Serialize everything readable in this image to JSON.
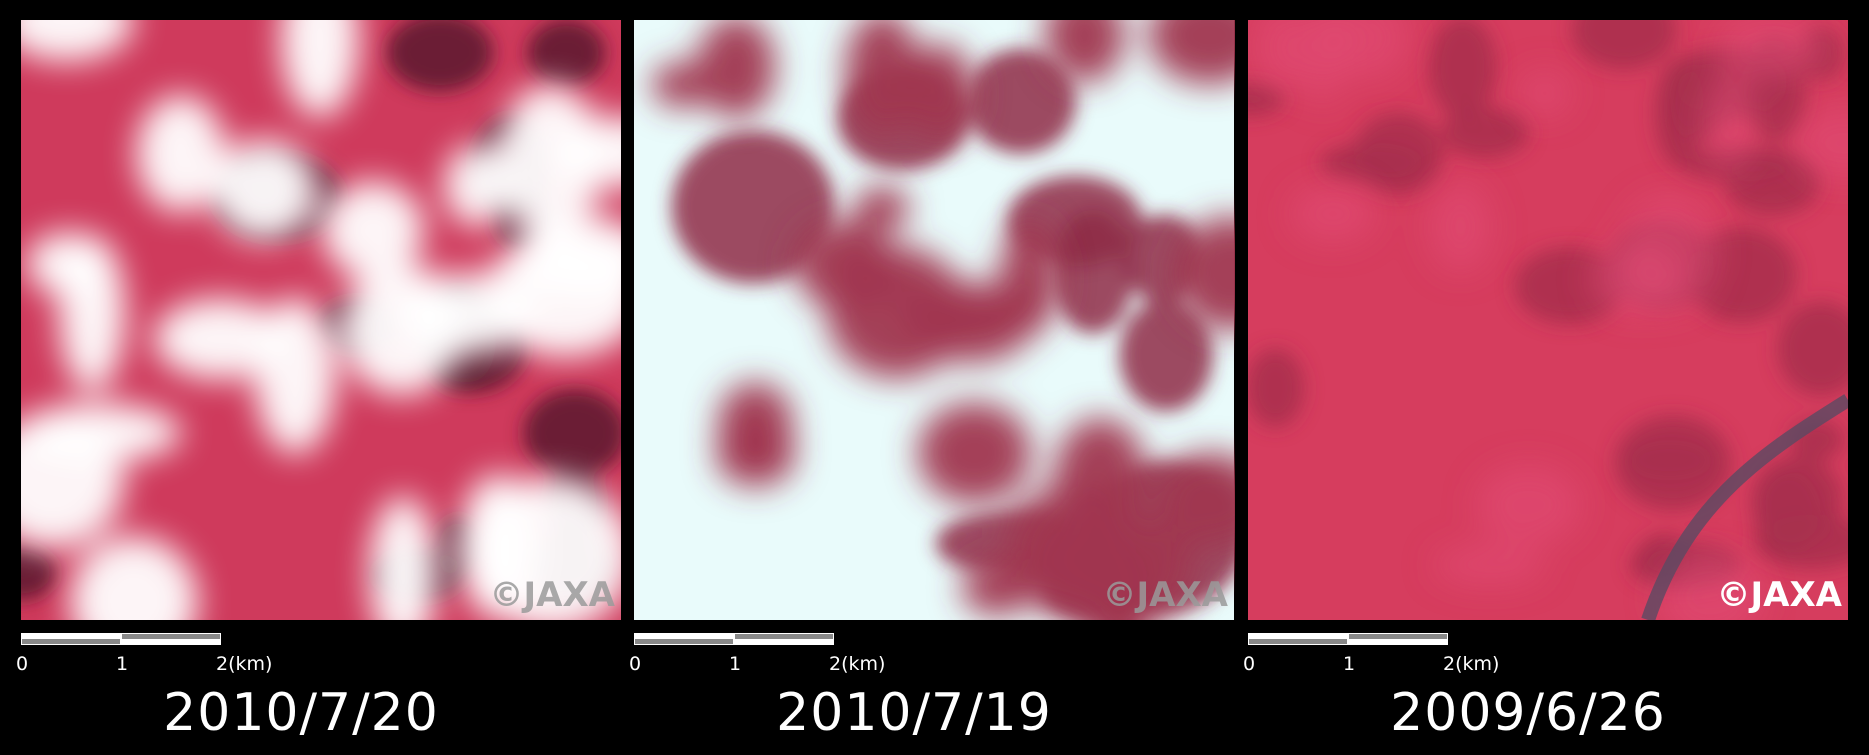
{
  "panels": [
    {
      "date": "2010/7/20",
      "copyright": "©JAXA",
      "scale_labels": [
        "0",
        "1",
        "2(km)"
      ]
    },
    {
      "date": "2010/7/19",
      "copyright": "©JAXA",
      "scale_labels": [
        "0",
        "1",
        "2(km)"
      ]
    },
    {
      "date": "2009/6/26",
      "copyright": "©JAXA",
      "scale_labels": [
        "0",
        "1",
        "2(km)"
      ]
    }
  ]
}
